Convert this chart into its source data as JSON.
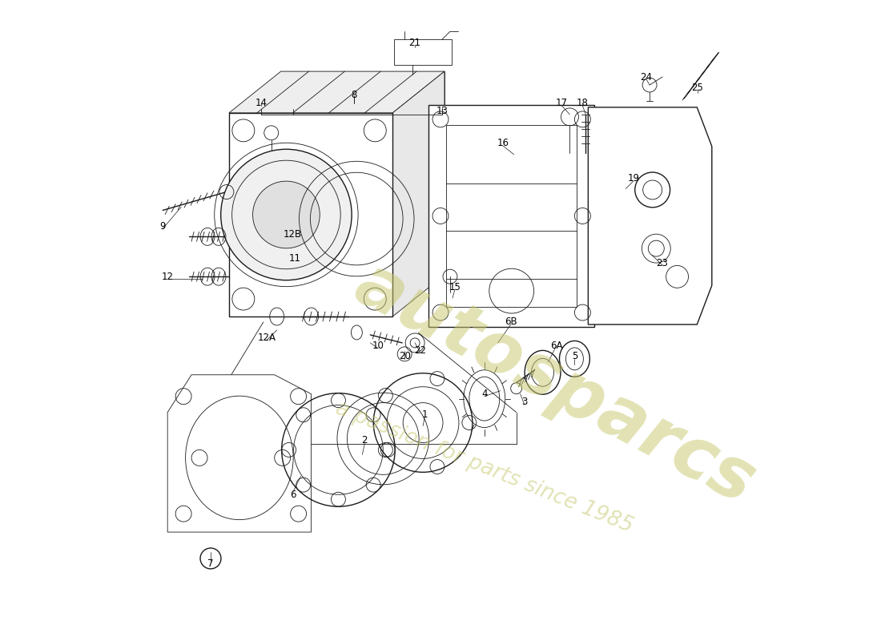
{
  "background_color": "#ffffff",
  "line_color": "#1a1a1a",
  "label_color": "#000000",
  "watermark_color": "#c8c870",
  "font_size": 8.5,
  "fig_w": 11.0,
  "fig_h": 8.0,
  "dpi": 100,
  "xlim": [
    0,
    11
  ],
  "ylim": [
    0,
    8
  ],
  "labels": [
    [
      "1",
      5.3,
      2.82
    ],
    [
      "2",
      4.55,
      2.5
    ],
    [
      "3",
      6.55,
      2.98
    ],
    [
      "4",
      6.05,
      3.08
    ],
    [
      "5",
      7.18,
      3.55
    ],
    [
      "6",
      3.65,
      1.82
    ],
    [
      "6A",
      6.95,
      3.68
    ],
    [
      "6B",
      6.38,
      3.98
    ],
    [
      "7",
      2.62,
      0.95
    ],
    [
      "8",
      4.42,
      6.82
    ],
    [
      "9",
      2.02,
      5.18
    ],
    [
      "10",
      4.72,
      3.68
    ],
    [
      "11",
      3.68,
      4.78
    ],
    [
      "12",
      2.08,
      4.55
    ],
    [
      "12A",
      3.32,
      3.78
    ],
    [
      "12B",
      3.65,
      5.08
    ],
    [
      "13",
      5.52,
      6.62
    ],
    [
      "14",
      3.25,
      6.72
    ],
    [
      "15",
      5.68,
      4.42
    ],
    [
      "16",
      6.28,
      6.22
    ],
    [
      "17",
      7.02,
      6.72
    ],
    [
      "18",
      7.28,
      6.72
    ],
    [
      "19",
      7.92,
      5.78
    ],
    [
      "20",
      5.05,
      3.55
    ],
    [
      "21",
      5.18,
      7.48
    ],
    [
      "22",
      5.25,
      3.62
    ],
    [
      "23",
      8.28,
      4.72
    ],
    [
      "24",
      8.08,
      7.05
    ],
    [
      "25",
      8.72,
      6.92
    ]
  ]
}
